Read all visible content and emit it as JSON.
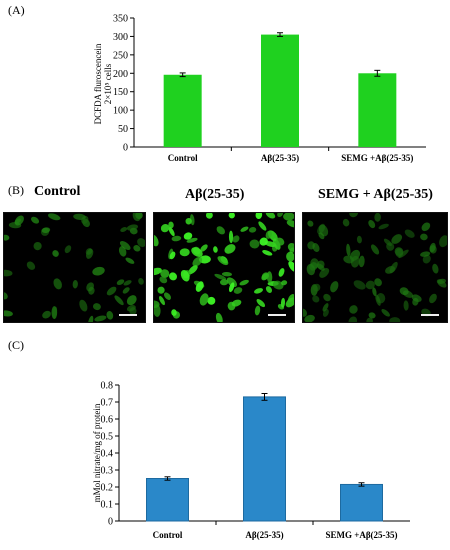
{
  "panels": {
    "a": "(A)",
    "b": "(B)",
    "c": "(C)"
  },
  "chart_data": [
    {
      "type": "bar",
      "categories": [
        "Control",
        "Aβ(25-35)",
        "SEMG +Aβ(25-35)"
      ],
      "values": [
        196,
        305,
        200
      ],
      "errors": [
        5,
        5,
        8
      ],
      "ylabel_line1": "DCFDA fluroscencein",
      "ylabel_line2": "2×10⁵ cells",
      "yticks": [
        0,
        50,
        100,
        150,
        200,
        250,
        300,
        350
      ],
      "ylim": [
        0,
        350
      ],
      "color": "#1fd11f",
      "grid": false
    },
    {
      "type": "bar",
      "categories": [
        "Control",
        "Aβ(25-35)",
        "SEMG +Aβ(25-35)"
      ],
      "values": [
        0.25,
        0.73,
        0.215
      ],
      "errors": [
        0.01,
        0.02,
        0.01
      ],
      "ylabel": "mMol nitrate/mg of protein",
      "yticks": [
        "0",
        "0.1",
        "0.2",
        "0.3",
        "0.4",
        "0.5",
        "0.6",
        "0.7",
        "0.8"
      ],
      "ylim": [
        0,
        0.8
      ],
      "color": "#2a88c9",
      "grid": false
    }
  ],
  "micrographs": [
    {
      "title": "Control",
      "brightness": 0.45,
      "density": 0.55
    },
    {
      "title": "Aβ(25-35)",
      "brightness": 1.0,
      "density": 0.95
    },
    {
      "title": "SEMG + Aβ(25-35)",
      "brightness": 0.35,
      "density": 0.75
    }
  ]
}
